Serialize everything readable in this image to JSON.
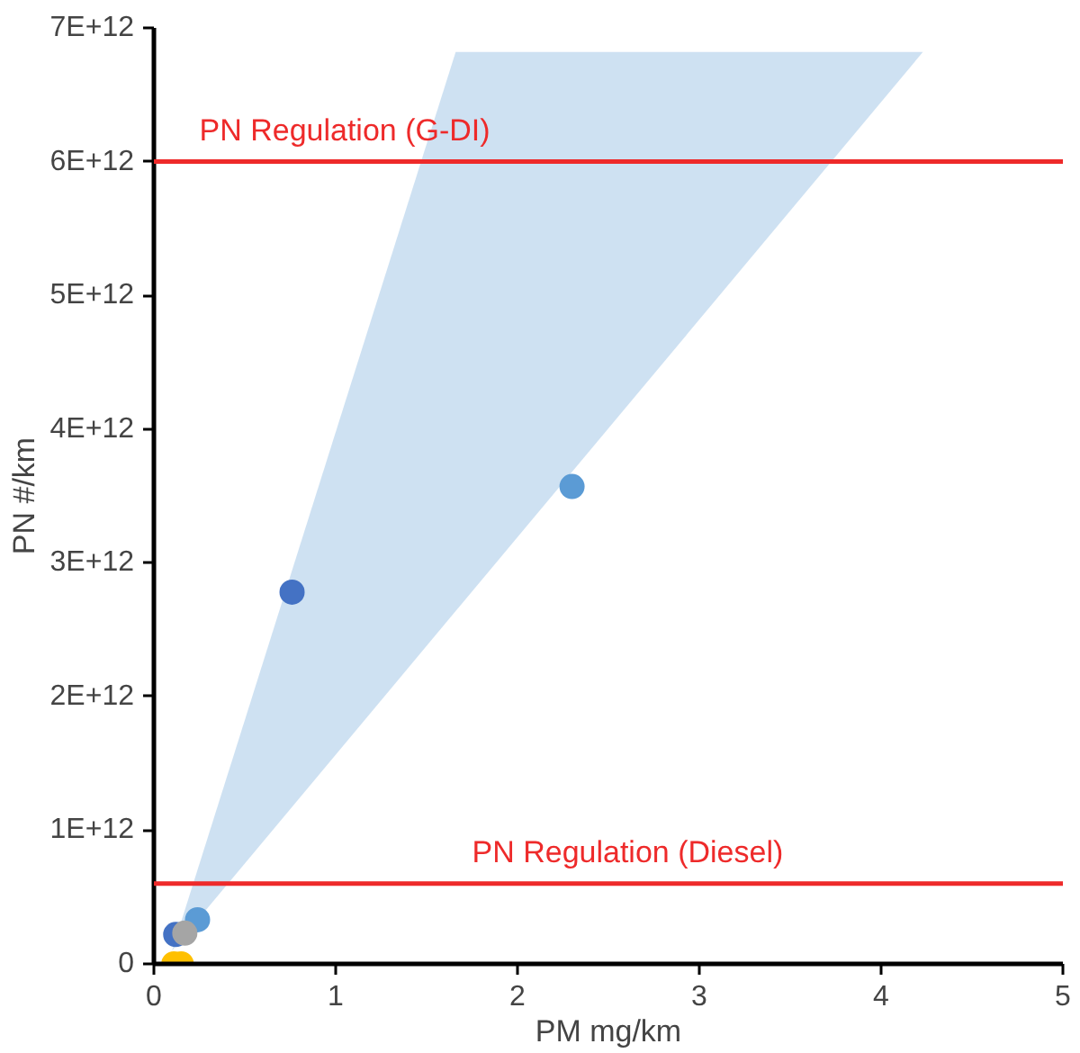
{
  "chart_data": {
    "type": "scatter",
    "xlabel": "PM mg/km",
    "ylabel": "PN #/km",
    "xlim": [
      0,
      5
    ],
    "xticks": [
      0,
      1,
      2,
      3,
      4,
      5
    ],
    "ylim": [
      0,
      7000000000000.0
    ],
    "yticks": [
      {
        "value": 0,
        "label": "0"
      },
      {
        "value": 1000000000000.0,
        "label": "1E+12"
      },
      {
        "value": 2000000000000.0,
        "label": "2E+12"
      },
      {
        "value": 3000000000000.0,
        "label": "3E+12"
      },
      {
        "value": 4000000000000.0,
        "label": "4E+12"
      },
      {
        "value": 5000000000000.0,
        "label": "5E+12"
      },
      {
        "value": 6000000000000.0,
        "label": "6E+12"
      },
      {
        "value": 7000000000000.0,
        "label": "7E+12"
      }
    ],
    "grid": false,
    "series": [
      {
        "type": "area",
        "color": "#bdd7ee",
        "x": [
          0.1,
          1.66,
          4.23,
          0.1
        ],
        "values": [
          100000000000.0,
          6820000000000.0,
          6820000000000.0,
          100000000000.0
        ]
      },
      {
        "marker": "circle",
        "x": [
          0.76,
          2.3,
          0.24,
          0.12,
          0.17,
          0.11,
          0.15
        ],
        "values": [
          2780000000000.0,
          3570000000000.0,
          330000000000.0,
          220000000000.0,
          230000000000.0,
          0,
          0
        ],
        "colors": [
          "#4472c4",
          "#5b9bd5",
          "#5b9bd5",
          "#4472c4",
          "#a5a5a5",
          "#ffc000",
          "#ffc000"
        ]
      }
    ],
    "ref_lines": [
      {
        "axis": "y",
        "value": 6000000000000.0,
        "label": "PN Regulation (G-DI)",
        "color": "#ee2a2a"
      },
      {
        "axis": "y",
        "value": 600000000000.0,
        "label": "PN Regulation (Diesel)",
        "color": "#ee2a2a"
      }
    ]
  }
}
